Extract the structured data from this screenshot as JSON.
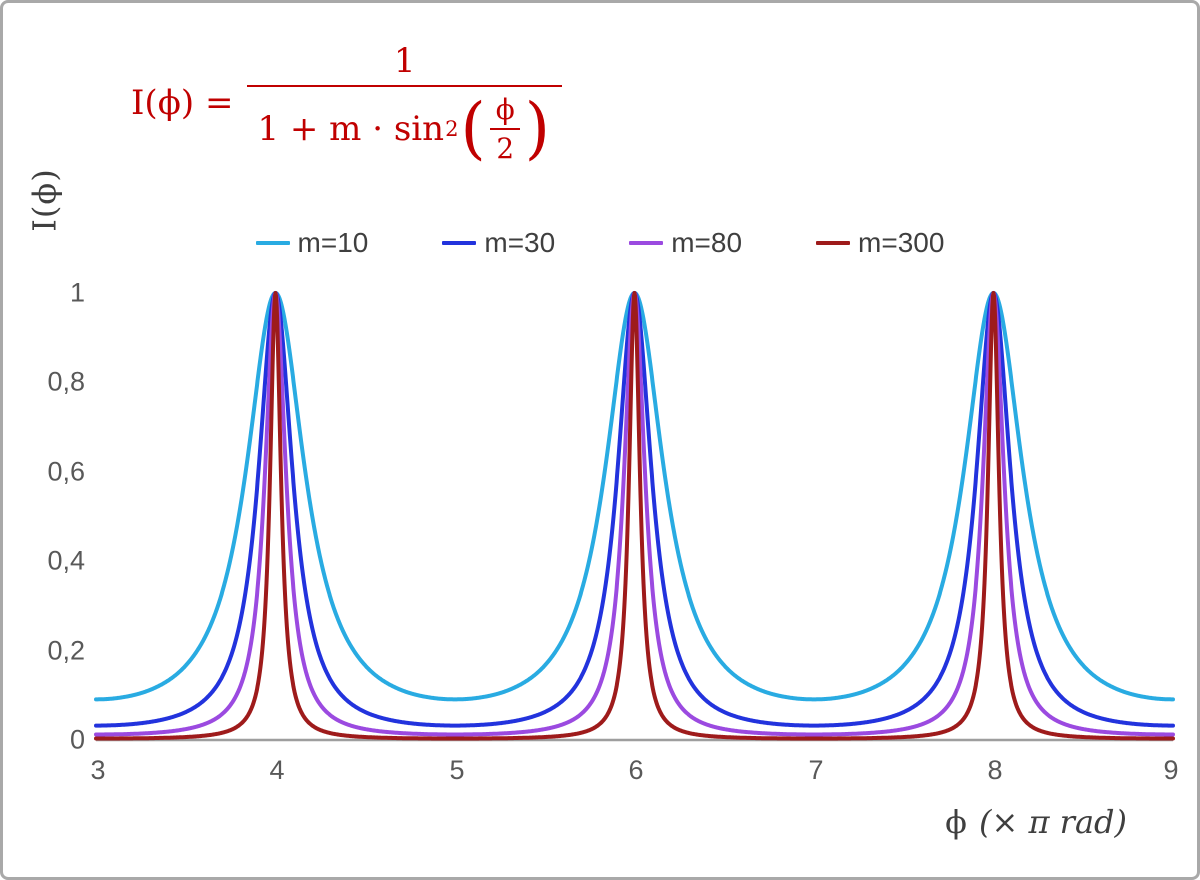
{
  "formula": {
    "lhs": "I(ϕ) =",
    "numerator": "1",
    "den_text": "1 + m · sin",
    "den_sup": "2",
    "open_paren": "(",
    "close_paren": ")",
    "inner_num": "ϕ",
    "inner_den": "2",
    "color": "#c00000"
  },
  "legend": {
    "items": [
      {
        "label": "m=10",
        "color": "#29abe2"
      },
      {
        "label": "m=30",
        "color": "#2233dd"
      },
      {
        "label": "m=80",
        "color": "#9b4ae0"
      },
      {
        "label": "m=300",
        "color": "#9e1b1b"
      }
    ]
  },
  "axes": {
    "x_ticks": [
      "3",
      "4",
      "5",
      "6",
      "7",
      "8",
      "9"
    ],
    "y_ticks": [
      "0",
      "0,2",
      "0,4",
      "0,6",
      "0,8",
      "1"
    ],
    "y_title": "I(ϕ)",
    "x_title_symbol": "ϕ",
    "x_title_unit": "(× π rad)",
    "axis_color": "#9e9e9e",
    "tick_color": "#595959"
  },
  "chart_data": {
    "type": "line",
    "title": "",
    "function": "I(phi) = 1 / (1 + m * sin^2(phi/2)), x axis in units of pi rad",
    "x_range": [
      3,
      9
    ],
    "y_range": [
      0,
      1
    ],
    "x_tick_values": [
      3,
      4,
      5,
      6,
      7,
      8,
      9
    ],
    "y_tick_values": [
      0,
      0.2,
      0.4,
      0.6,
      0.8,
      1
    ],
    "peaks_at_x": [
      4,
      6,
      8
    ],
    "peak_value": 1,
    "minima_value_formula": "1/(1+m)",
    "grid": false,
    "legend_position": "top-center",
    "series": [
      {
        "name": "m=10",
        "m": 10,
        "color": "#29abe2",
        "min_value": 0.0909
      },
      {
        "name": "m=30",
        "m": 30,
        "color": "#2233dd",
        "min_value": 0.0323
      },
      {
        "name": "m=80",
        "m": 80,
        "color": "#9b4ae0",
        "min_value": 0.0123
      },
      {
        "name": "m=300",
        "m": 300,
        "color": "#9e1b1b",
        "min_value": 0.0033
      }
    ]
  }
}
